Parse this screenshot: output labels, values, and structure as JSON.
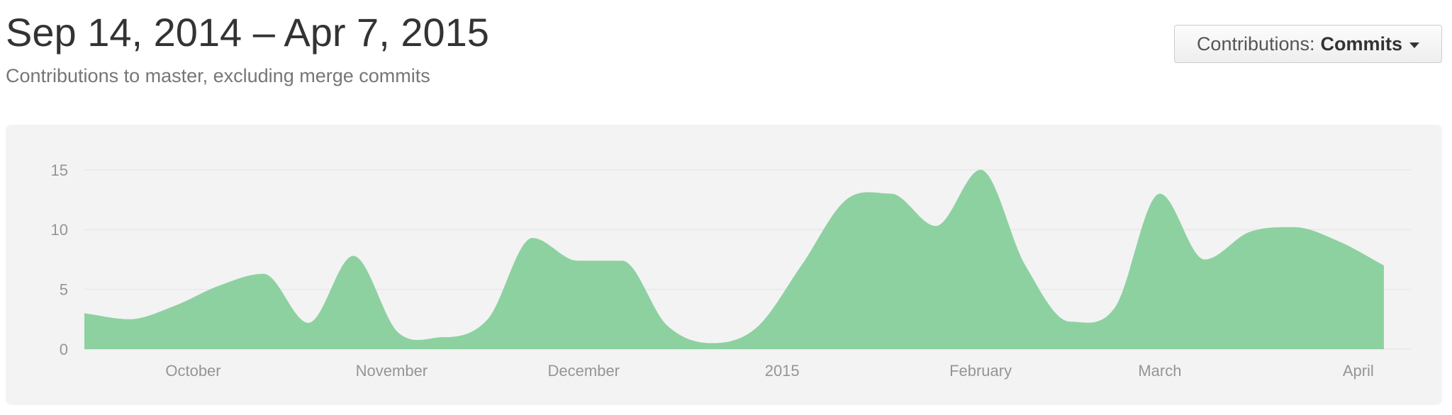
{
  "header": {
    "title": "Sep 14, 2014 – Apr 7, 2015",
    "subtitle": "Contributions to master, excluding merge commits"
  },
  "selector": {
    "label": "Contributions:",
    "value": "Commits",
    "icon": "caret-down-icon"
  },
  "colors": {
    "area": "#8dd1a1",
    "panel": "#f3f3f3",
    "grid": "#e8e8e8",
    "tick": "#959595"
  },
  "chart_data": {
    "type": "area",
    "x_tick_labels": [
      "October",
      "November",
      "December",
      "2015",
      "February",
      "March",
      "April"
    ],
    "y_ticks": [
      0,
      5,
      10,
      15
    ],
    "ylim": [
      0,
      17
    ],
    "xlim": [
      "2014-09-14",
      "2015-04-07"
    ],
    "grid": true,
    "series": [
      {
        "x": [
          "2014-09-14",
          "2014-09-21",
          "2014-09-28",
          "2014-10-05",
          "2014-10-12",
          "2014-10-19",
          "2014-10-26",
          "2014-11-02",
          "2014-11-09",
          "2014-11-16",
          "2014-11-23",
          "2014-11-30",
          "2014-12-07",
          "2014-12-14",
          "2014-12-21",
          "2014-12-28",
          "2015-01-04",
          "2015-01-11",
          "2015-01-18",
          "2015-01-25",
          "2015-02-01",
          "2015-02-08",
          "2015-02-15",
          "2015-02-22",
          "2015-03-01",
          "2015-03-08",
          "2015-03-15",
          "2015-03-22",
          "2015-03-29",
          "2015-04-05"
        ],
        "y": [
          3,
          2.5,
          3.6,
          5.3,
          6.3,
          2.2,
          7.8,
          1.4,
          1.0,
          2.5,
          9.3,
          7.4,
          7.4,
          2.0,
          0.5,
          1.8,
          7.0,
          12.5,
          13.0,
          10.3,
          15.0,
          7.0,
          2.3,
          3.5,
          13.0,
          7.5,
          9.8,
          10.2,
          9.0,
          7.0
        ]
      }
    ]
  }
}
